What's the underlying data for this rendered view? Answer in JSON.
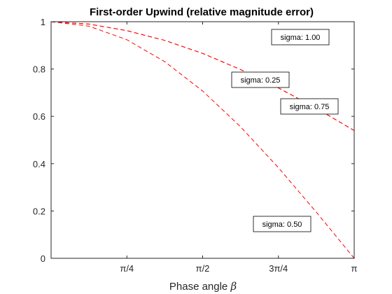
{
  "chart_data": {
    "type": "line",
    "title": "First-order Upwind (relative magnitude error)",
    "xlabel_text": "Phase angle ",
    "xlabel_symbol": "β",
    "ylabel": "",
    "xlim": [
      0,
      3.14159
    ],
    "ylim": [
      0,
      1
    ],
    "grid": false,
    "x_ticks": [
      {
        "value": 0.785398,
        "label": "π/4"
      },
      {
        "value": 1.570796,
        "label": "π/2"
      },
      {
        "value": 2.356194,
        "label": "3π/4"
      },
      {
        "value": 3.141593,
        "label": "π"
      }
    ],
    "y_ticks": [
      {
        "value": 0,
        "label": "0"
      },
      {
        "value": 0.2,
        "label": "0.2"
      },
      {
        "value": 0.4,
        "label": "0.4"
      },
      {
        "value": 0.6,
        "label": "0.6"
      },
      {
        "value": 0.8,
        "label": "0.8"
      },
      {
        "value": 1,
        "label": "1"
      }
    ],
    "line_color": "#ff0000",
    "series": [
      {
        "sigma": 1.0,
        "x": [
          0,
          3.14159
        ],
        "y": [
          1.0,
          1.0
        ]
      },
      {
        "sigma": 0.25,
        "x": [
          0,
          0.393,
          0.785,
          1.178,
          1.571,
          1.963,
          2.356,
          2.749,
          3.14159
        ],
        "y": [
          1.0,
          0.99,
          0.962,
          0.921,
          0.866,
          0.798,
          0.72,
          0.634,
          0.54
        ]
      },
      {
        "sigma": 0.75,
        "x": [
          0,
          0.393,
          0.785,
          1.178,
          1.571,
          1.963,
          2.356,
          2.749,
          3.14159
        ],
        "y": [
          1.0,
          0.99,
          0.962,
          0.921,
          0.866,
          0.798,
          0.72,
          0.634,
          0.54
        ]
      },
      {
        "sigma": 0.5,
        "x": [
          0,
          0.393,
          0.785,
          1.178,
          1.571,
          1.963,
          2.356,
          2.749,
          3.14159
        ],
        "y": [
          1.0,
          0.981,
          0.924,
          0.831,
          0.707,
          0.556,
          0.383,
          0.195,
          0.0
        ]
      }
    ],
    "annotations": [
      {
        "text": "sigma: 1.00"
      },
      {
        "text": "sigma: 0.25"
      },
      {
        "text": "sigma: 0.75"
      },
      {
        "text": "sigma: 0.50"
      }
    ]
  }
}
